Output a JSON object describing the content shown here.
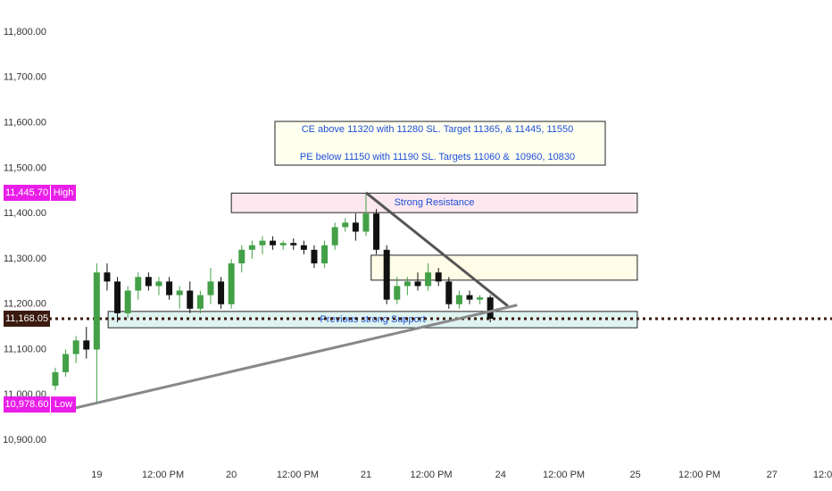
{
  "chart_data": {
    "type": "candlestick",
    "x": [
      -4,
      -3,
      -2,
      -1,
      0,
      1,
      2,
      3,
      4,
      5,
      6,
      7,
      8,
      9,
      10,
      11,
      12,
      13,
      14,
      15,
      16,
      17,
      18,
      19,
      20,
      21,
      22,
      23,
      24,
      25,
      26,
      27,
      28,
      29,
      30,
      31,
      32,
      33,
      34,
      35,
      36,
      37,
      38
    ],
    "open": [
      11020,
      11050,
      11090,
      11120,
      11100,
      11270,
      11250,
      11180,
      11230,
      11260,
      11240,
      11250,
      11220,
      11230,
      11190,
      11220,
      11250,
      11200,
      11290,
      11320,
      11330,
      11340,
      11330,
      11335,
      11330,
      11320,
      11290,
      11330,
      11370,
      11380,
      11360,
      11400,
      11320,
      11210,
      11240,
      11250,
      11240,
      11270,
      11250,
      11200,
      11220,
      11210,
      11215
    ],
    "high": [
      11060,
      11100,
      11130,
      11150,
      11290,
      11290,
      11260,
      11240,
      11270,
      11270,
      11260,
      11260,
      11240,
      11250,
      11230,
      11280,
      11260,
      11300,
      11330,
      11340,
      11350,
      11350,
      11340,
      11345,
      11340,
      11330,
      11340,
      11380,
      11390,
      11400,
      11446,
      11410,
      11330,
      11260,
      11260,
      11270,
      11290,
      11280,
      11260,
      11230,
      11230,
      11220,
      11220
    ],
    "low": [
      11010,
      11040,
      11070,
      11080,
      10980,
      11230,
      11160,
      11170,
      11210,
      11230,
      11220,
      11210,
      11190,
      11180,
      11180,
      11200,
      11190,
      11190,
      11270,
      11300,
      11310,
      11320,
      11320,
      11320,
      11310,
      11280,
      11280,
      11320,
      11360,
      11340,
      11350,
      11310,
      11200,
      11200,
      11220,
      11230,
      11230,
      11240,
      11190,
      11190,
      11200,
      11200,
      11160
    ],
    "close": [
      11050,
      11090,
      11120,
      11100,
      11270,
      11250,
      11180,
      11230,
      11260,
      11240,
      11250,
      11220,
      11230,
      11190,
      11220,
      11250,
      11200,
      11290,
      11320,
      11330,
      11340,
      11330,
      11335,
      11330,
      11320,
      11290,
      11330,
      11370,
      11380,
      11360,
      11400,
      11320,
      11210,
      11240,
      11250,
      11240,
      11270,
      11250,
      11200,
      11220,
      11210,
      11215,
      11168
    ],
    "up_color": "#43a047",
    "down_color": "#111111",
    "ylim": [
      10847,
      11871
    ],
    "yticks": [
      {
        "value": 10900,
        "label": "10,900.00"
      },
      {
        "value": 11000,
        "label": "11,000.00"
      },
      {
        "value": 11100,
        "label": "11,100.00"
      },
      {
        "value": 11200,
        "label": "11,200.00"
      },
      {
        "value": 11300,
        "label": "11,300.00"
      },
      {
        "value": 11400,
        "label": "11,400.00"
      },
      {
        "value": 11500,
        "label": "11,500.00"
      },
      {
        "value": 11600,
        "label": "11,600.00"
      },
      {
        "value": 11700,
        "label": "11,700.00"
      },
      {
        "value": 11800,
        "label": "11,800.00"
      }
    ],
    "xlim": [
      -4.6,
      71.0
    ],
    "xticks": [
      {
        "value": 0,
        "label": "19"
      },
      {
        "value": 6.4,
        "label": "12:00 PM"
      },
      {
        "value": 13,
        "label": "20"
      },
      {
        "value": 19.4,
        "label": "12:00 PM"
      },
      {
        "value": 26,
        "label": "21"
      },
      {
        "value": 32.3,
        "label": "12:00 PM"
      },
      {
        "value": 39,
        "label": "24"
      },
      {
        "value": 45.1,
        "label": "12:00 PM"
      },
      {
        "value": 52,
        "label": "25"
      },
      {
        "value": 58.2,
        "label": "12:00 PM"
      },
      {
        "value": 65.2,
        "label": "27"
      },
      {
        "value": 70.1,
        "label": "12:0"
      }
    ],
    "price_labels": [
      {
        "value": 11445.7,
        "label": "11,445.70",
        "tag": "High",
        "color": "#e91ee8"
      },
      {
        "value": 11168.05,
        "label": "11,168.05",
        "color": "#3b1a0f",
        "dotted_line": true
      },
      {
        "value": 10978.6,
        "label": "10,978.60",
        "tag": "Low",
        "color": "#e91ee8"
      }
    ],
    "zones": [
      {
        "label": "Strong Resistance",
        "x": [
          13,
          52.2
        ],
        "y": [
          11402,
          11445
        ],
        "fill": "#fde8ef"
      },
      {
        "x": [
          26.5,
          52.2
        ],
        "y": [
          11253,
          11308
        ],
        "fill": "#fffde7"
      },
      {
        "label": "Previous strong Support",
        "x": [
          1.1,
          52.2
        ],
        "y": [
          11148,
          11184
        ],
        "fill": "#dff4f1"
      }
    ],
    "trendlines": [
      {
        "x": [
          26,
          39.7
        ],
        "y": [
          11446,
          11196
        ],
        "color": "#555555"
      },
      {
        "x": [
          -2.1,
          40.6
        ],
        "y": [
          10971,
          11198
        ],
        "color": "#888888"
      }
    ],
    "annotations": [
      "CE above 11320 with 11280 SL. Target 11365, & 11445, 11550",
      "PE below 11150 with 11190 SL. Targets 11060 &  10960, 10830"
    ]
  }
}
